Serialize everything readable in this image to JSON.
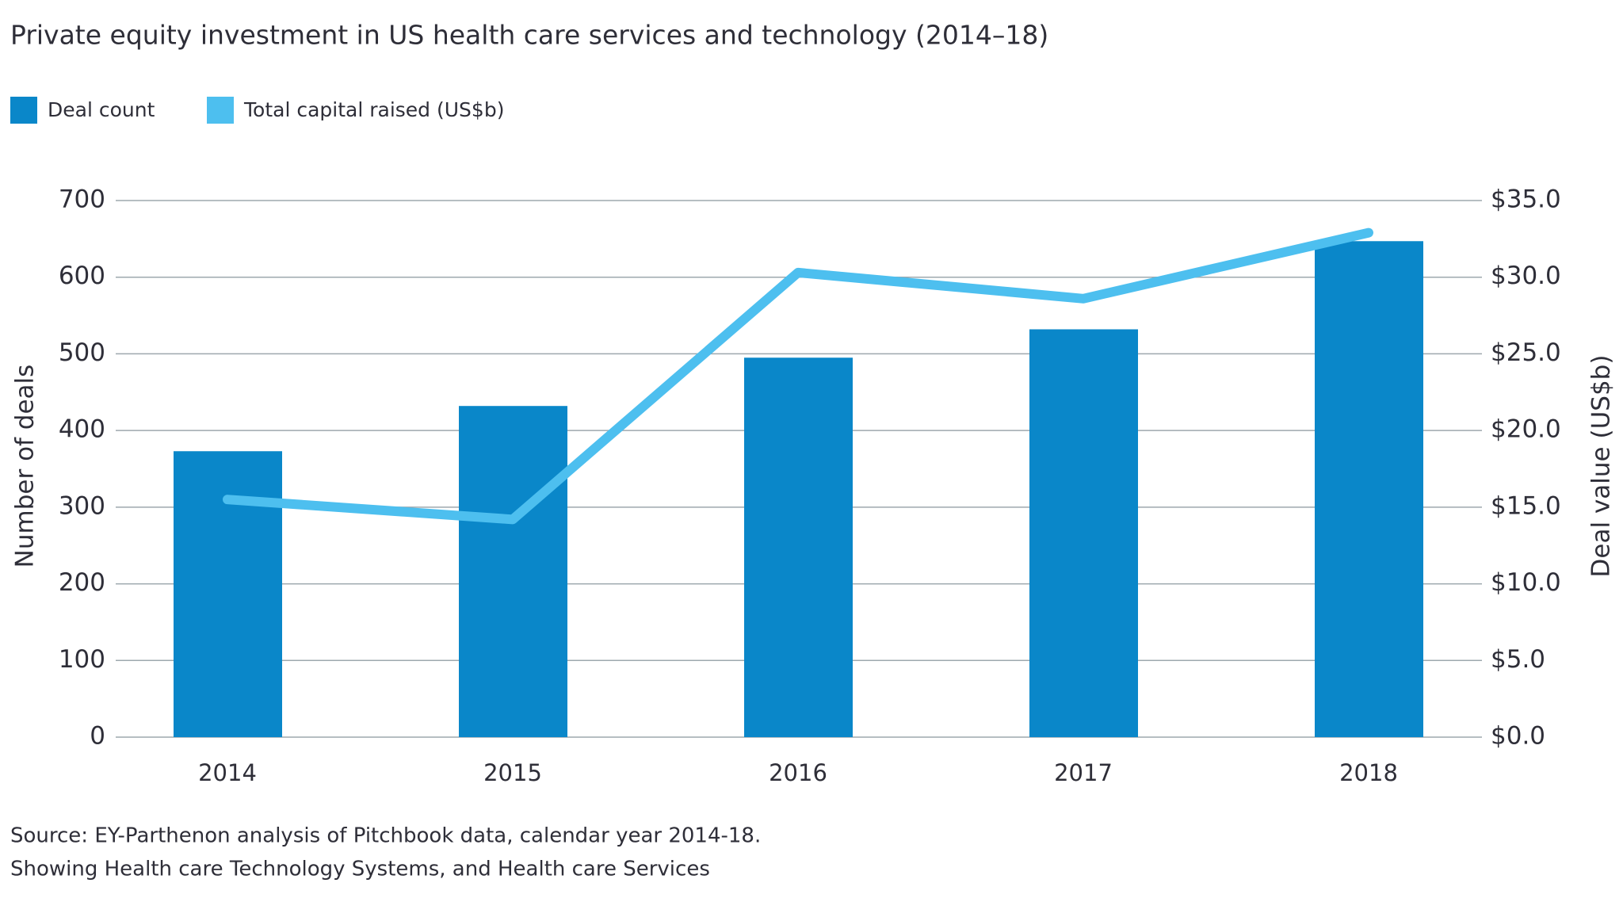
{
  "chart_data": {
    "type": "bar",
    "title": "Private equity investment in US health care services and technology (2014–18)",
    "categories": [
      "2014",
      "2015",
      "2016",
      "2017",
      "2018"
    ],
    "series": [
      {
        "name": "Deal count",
        "type": "bar",
        "color": "#0a87c9",
        "values": [
          373,
          432,
          495,
          532,
          647
        ]
      },
      {
        "name": "Total capital raised (US$b)",
        "type": "line",
        "axis": "y2",
        "color": "#4dbfef",
        "values": [
          15.5,
          14.2,
          30.3,
          28.6,
          32.9
        ]
      }
    ],
    "y_label": "Number of deals",
    "y2_label": "Deal value (US$b)",
    "ylim": [
      0,
      700
    ],
    "yticks": [
      0,
      100,
      200,
      300,
      400,
      500,
      600,
      700
    ],
    "y2lim": [
      0,
      35
    ],
    "y2ticks": [
      {
        "value": 0,
        "label": "$0.0"
      },
      {
        "value": 5,
        "label": "$5.0"
      },
      {
        "value": 10,
        "label": "$10.0"
      },
      {
        "value": 15,
        "label": "$15.0"
      },
      {
        "value": 20,
        "label": "$20.0"
      },
      {
        "value": 25,
        "label": "$25.0"
      },
      {
        "value": 30,
        "label": "$30.0"
      },
      {
        "value": 35,
        "label": "$35.0"
      }
    ],
    "grid": true,
    "legend": "top-left",
    "notes": [
      "Source: EY-Parthenon analysis of Pitchbook data, calendar year 2014-18.",
      "Showing Health care Technology Systems, and Health care Services"
    ]
  }
}
